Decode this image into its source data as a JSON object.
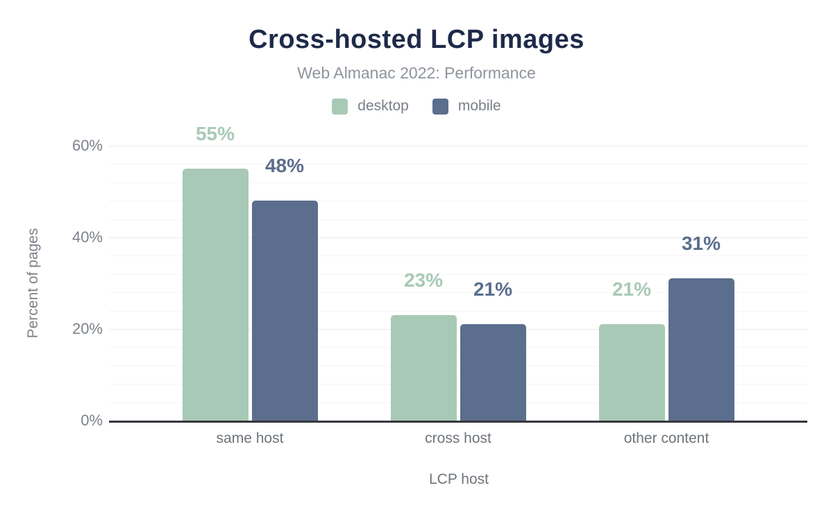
{
  "header": {
    "title": "Cross-hosted LCP images",
    "subtitle": "Web Almanac 2022: Performance"
  },
  "palette": {
    "title_text": "#1e2a49",
    "subtitle_text": "#8e949c",
    "axis_text": "#7c828a",
    "axis_line": "#35363c",
    "desktop": "#a8c9b6",
    "mobile": "#5c6e8d"
  },
  "chart_data": {
    "type": "bar",
    "title": "Cross-hosted LCP images",
    "subtitle": "Web Almanac 2022: Performance",
    "xlabel": "LCP host",
    "ylabel": "Percent of pages",
    "categories": [
      "same host",
      "cross host",
      "other content"
    ],
    "series": [
      {
        "name": "desktop",
        "color": "#a8c9b6",
        "values": [
          55,
          23,
          21
        ],
        "labels": [
          "55%",
          "23%",
          "21%"
        ]
      },
      {
        "name": "mobile",
        "color": "#5c6e8d",
        "values": [
          48,
          21,
          31
        ],
        "labels": [
          "48%",
          "21%",
          "31%"
        ]
      }
    ],
    "ylim": [
      0,
      60
    ],
    "y_ticks": [
      {
        "value": 0,
        "label": "0%"
      },
      {
        "value": 20,
        "label": "20%"
      },
      {
        "value": 40,
        "label": "40%"
      },
      {
        "value": 60,
        "label": "60%"
      }
    ],
    "y_minor_step": 4,
    "grid": true,
    "legend_position": "top",
    "legend": [
      {
        "label": "desktop",
        "color": "#a8c9b6"
      },
      {
        "label": "mobile",
        "color": "#5c6e8d"
      }
    ]
  }
}
